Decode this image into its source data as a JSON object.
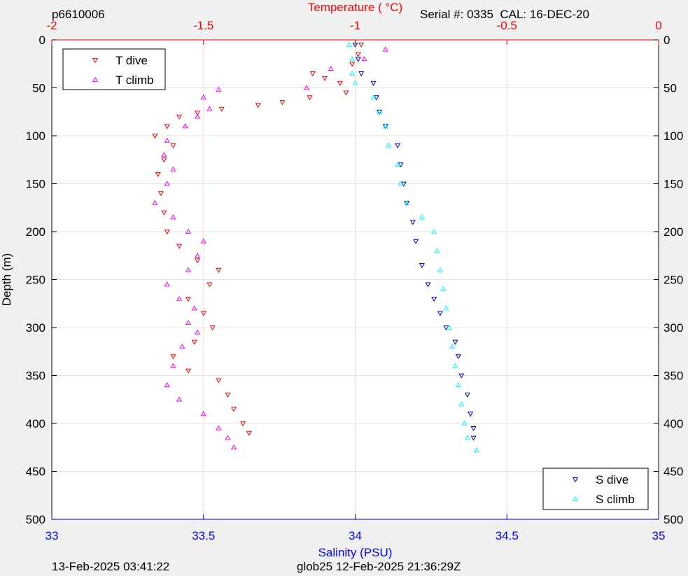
{
  "header": {
    "left": "p6610006",
    "right": "Serial #: 0335  CAL: 16-DEC-20"
  },
  "footer": {
    "left": "13-Feb-2025 03:41:22",
    "center": "glob25 12-Feb-2025 21:36:29Z"
  },
  "colors": {
    "t_dive": "#ff0000",
    "t_climb": "#ff00ff",
    "s_dive": "#0000cc",
    "s_climb": "#00ffff",
    "temp_axis": "#ff0000",
    "sal_axis": "#0000ff",
    "grid": "#ffd6d6"
  },
  "chart_data": {
    "type": "scatter",
    "ylabel": "Depth (m)",
    "xlabel_bottom": "Salinity (PSU)",
    "xlabel_top": "Temperature (   °C)",
    "ylim": [
      0,
      500
    ],
    "y_reversed": true,
    "y_ticks": [
      "0",
      "50",
      "100",
      "150",
      "200",
      "250",
      "300",
      "350",
      "400",
      "450",
      "500"
    ],
    "temp_lim": [
      -2,
      0
    ],
    "temp_ticks": [
      "-2",
      "-1.5",
      "-1",
      "-0.5",
      "0"
    ],
    "sal_lim": [
      33,
      35
    ],
    "sal_ticks": [
      "33",
      "33.5",
      "34",
      "34.5",
      "35"
    ],
    "grid": true,
    "legend_temp": {
      "placement": "top-left",
      "entries": [
        "T dive",
        "T climb"
      ]
    },
    "legend_sal": {
      "placement": "bottom-right",
      "entries": [
        "S dive",
        "S climb"
      ]
    },
    "series": [
      {
        "name": "T dive",
        "axis": "temperature",
        "marker": "triangle-down",
        "points": [
          [
            -0.98,
            5
          ],
          [
            -0.99,
            15
          ],
          [
            -1.01,
            25
          ],
          [
            -1.14,
            35
          ],
          [
            -1.1,
            40
          ],
          [
            -1.05,
            45
          ],
          [
            -1.03,
            55
          ],
          [
            -1.15,
            60
          ],
          [
            -1.24,
            65
          ],
          [
            -1.32,
            68
          ],
          [
            -1.44,
            72
          ],
          [
            -1.52,
            76
          ],
          [
            -1.58,
            80
          ],
          [
            -1.62,
            90
          ],
          [
            -1.66,
            100
          ],
          [
            -1.6,
            110
          ],
          [
            -1.63,
            125
          ],
          [
            -1.65,
            140
          ],
          [
            -1.64,
            160
          ],
          [
            -1.63,
            180
          ],
          [
            -1.62,
            200
          ],
          [
            -1.58,
            215
          ],
          [
            -1.52,
            230
          ],
          [
            -1.45,
            240
          ],
          [
            -1.48,
            255
          ],
          [
            -1.55,
            270
          ],
          [
            -1.5,
            285
          ],
          [
            -1.47,
            300
          ],
          [
            -1.53,
            315
          ],
          [
            -1.6,
            330
          ],
          [
            -1.55,
            345
          ],
          [
            -1.45,
            355
          ],
          [
            -1.42,
            370
          ],
          [
            -1.4,
            385
          ],
          [
            -1.37,
            400
          ],
          [
            -1.35,
            410
          ]
        ]
      },
      {
        "name": "T climb",
        "axis": "temperature",
        "marker": "triangle-up",
        "points": [
          [
            -0.9,
            10
          ],
          [
            -0.97,
            20
          ],
          [
            -1.08,
            30
          ],
          [
            -1.16,
            50
          ],
          [
            -1.45,
            52
          ],
          [
            -1.5,
            60
          ],
          [
            -1.48,
            72
          ],
          [
            -1.52,
            80
          ],
          [
            -1.56,
            90
          ],
          [
            -1.62,
            105
          ],
          [
            -1.63,
            120
          ],
          [
            -1.6,
            135
          ],
          [
            -1.62,
            150
          ],
          [
            -1.66,
            170
          ],
          [
            -1.6,
            185
          ],
          [
            -1.55,
            200
          ],
          [
            -1.5,
            210
          ],
          [
            -1.52,
            225
          ],
          [
            -1.55,
            240
          ],
          [
            -1.62,
            255
          ],
          [
            -1.58,
            270
          ],
          [
            -1.53,
            280
          ],
          [
            -1.55,
            295
          ],
          [
            -1.52,
            305
          ],
          [
            -1.57,
            320
          ],
          [
            -1.6,
            340
          ],
          [
            -1.62,
            360
          ],
          [
            -1.58,
            375
          ],
          [
            -1.5,
            390
          ],
          [
            -1.45,
            405
          ],
          [
            -1.42,
            415
          ],
          [
            -1.4,
            425
          ]
        ]
      },
      {
        "name": "S dive",
        "axis": "salinity",
        "marker": "triangle-down",
        "points": [
          [
            34.0,
            5
          ],
          [
            34.01,
            20
          ],
          [
            34.02,
            35
          ],
          [
            34.06,
            45
          ],
          [
            34.07,
            60
          ],
          [
            34.08,
            75
          ],
          [
            34.1,
            90
          ],
          [
            34.14,
            110
          ],
          [
            34.15,
            130
          ],
          [
            34.16,
            150
          ],
          [
            34.17,
            170
          ],
          [
            34.19,
            190
          ],
          [
            34.2,
            210
          ],
          [
            34.22,
            235
          ],
          [
            34.24,
            255
          ],
          [
            34.26,
            270
          ],
          [
            34.28,
            285
          ],
          [
            34.3,
            300
          ],
          [
            34.33,
            315
          ],
          [
            34.34,
            330
          ],
          [
            34.35,
            350
          ],
          [
            34.37,
            370
          ],
          [
            34.38,
            390
          ],
          [
            34.39,
            405
          ],
          [
            34.39,
            415
          ]
        ]
      },
      {
        "name": "S climb",
        "axis": "salinity",
        "marker": "triangle-up",
        "points": [
          [
            33.98,
            5
          ],
          [
            33.99,
            20
          ],
          [
            33.99,
            35
          ],
          [
            34.0,
            45
          ],
          [
            34.06,
            60
          ],
          [
            34.08,
            75
          ],
          [
            34.1,
            90
          ],
          [
            34.11,
            110
          ],
          [
            34.14,
            130
          ],
          [
            34.15,
            150
          ],
          [
            34.17,
            170
          ],
          [
            34.22,
            185
          ],
          [
            34.26,
            200
          ],
          [
            34.27,
            220
          ],
          [
            34.28,
            240
          ],
          [
            34.29,
            260
          ],
          [
            34.3,
            280
          ],
          [
            34.31,
            300
          ],
          [
            34.32,
            320
          ],
          [
            34.33,
            340
          ],
          [
            34.34,
            360
          ],
          [
            34.35,
            380
          ],
          [
            34.36,
            400
          ],
          [
            34.37,
            415
          ],
          [
            34.4,
            428
          ]
        ]
      }
    ]
  }
}
